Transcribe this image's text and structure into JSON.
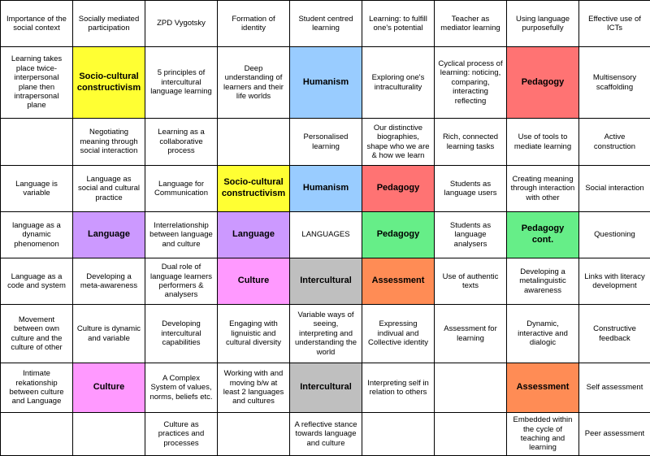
{
  "colors": {
    "yellow": "#ffff33",
    "blue": "#99ccff",
    "red": "#ff7373",
    "purple": "#cc99ff",
    "green": "#66ee88",
    "pink": "#ff99ff",
    "grey": "#bfbfbf",
    "orange": "#ff8c55",
    "white": "#ffffff"
  },
  "rows": [
    [
      {
        "text": "Importance of the social context"
      },
      {
        "text": "Socially mediated participation"
      },
      {
        "text": "ZPD Vygotsky"
      },
      {
        "text": "Formation of identity"
      },
      {
        "text": "Student centred learning"
      },
      {
        "text": "Learning: to fulfill one's potential"
      },
      {
        "text": "Teacher as mediator learning"
      },
      {
        "text": "Using language purposefully"
      },
      {
        "text": "Effective use of ICTs"
      }
    ],
    [
      {
        "text": "Learning takes place twice- interpersonal plane then intrapersonal plane"
      },
      {
        "text": "Socio-cultural constructivism",
        "color": "yellow",
        "bold": true
      },
      {
        "text": "5 principles of intercultural language learning"
      },
      {
        "text": "Deep understanding of learners and their life worlds"
      },
      {
        "text": "Humanism",
        "color": "blue",
        "bold": true
      },
      {
        "text": "Exploring one's intraculturality"
      },
      {
        "text": "Cyclical process of learning: noticing, comparing, interacting reflecting"
      },
      {
        "text": "Pedagogy",
        "color": "red",
        "bold": true
      },
      {
        "text": "Multisensory scaffolding"
      }
    ],
    [
      {
        "text": ""
      },
      {
        "text": "Negotiating meaning through social interaction"
      },
      {
        "text": "Learning as a collaborative process"
      },
      {
        "text": ""
      },
      {
        "text": "Personalised learning"
      },
      {
        "text": "Our distinctive biographies, shape who we are & how we learn"
      },
      {
        "text": "Rich, connected learning tasks"
      },
      {
        "text": "Use of tools to mediate learning"
      },
      {
        "text": "Active construction"
      }
    ],
    [
      {
        "text": "Language is variable"
      },
      {
        "text": "Language as social and cultural practice"
      },
      {
        "text": "Language for Communication"
      },
      {
        "text": "Socio-cultural constructivism",
        "color": "yellow",
        "bold": true
      },
      {
        "text": "Humanism",
        "color": "blue",
        "bold": true
      },
      {
        "text": "Pedagogy",
        "color": "red",
        "bold": true
      },
      {
        "text": "Students as language users"
      },
      {
        "text": "Creating meaning through interaction with other"
      },
      {
        "text": "Social interaction"
      }
    ],
    [
      {
        "text": "language as a dynamic phenomenon"
      },
      {
        "text": "Language",
        "color": "purple",
        "bold": true
      },
      {
        "text": "Interrelationship between language and culture"
      },
      {
        "text": "Language",
        "color": "purple",
        "bold": true
      },
      {
        "text": "LANGUAGES"
      },
      {
        "text": "Pedagogy",
        "color": "green",
        "bold": true
      },
      {
        "text": "Students as language analysers"
      },
      {
        "text": "Pedagogy cont.",
        "color": "green",
        "bold": true
      },
      {
        "text": "Questioning"
      }
    ],
    [
      {
        "text": "Language as a code and system"
      },
      {
        "text": "Developing a meta-awareness"
      },
      {
        "text": "Dual role of language learners performers & analysers"
      },
      {
        "text": "Culture",
        "color": "pink",
        "bold": true
      },
      {
        "text": "Intercultural",
        "color": "grey",
        "bold": true
      },
      {
        "text": "Assessment",
        "color": "orange",
        "bold": true
      },
      {
        "text": "Use of authentic texts"
      },
      {
        "text": "Developing a metalinguistic awareness"
      },
      {
        "text": "Links with literacy development"
      }
    ],
    [
      {
        "text": "Movement between own culture and the culture of other"
      },
      {
        "text": "Culture is dynamic and variable"
      },
      {
        "text": "Developing intercultural capabilities"
      },
      {
        "text": "Engaging with lignuistic and cultural diversity"
      },
      {
        "text": "Variable ways of seeing, interpreting and understanding the world"
      },
      {
        "text": "Expressing indivual and Collective identity"
      },
      {
        "text": "Assessment for learning"
      },
      {
        "text": "Dynamic, interactive and dialogic"
      },
      {
        "text": "Constructive feedback"
      }
    ],
    [
      {
        "text": "Intimate rekationship between culture and Language"
      },
      {
        "text": "Culture",
        "color": "pink",
        "bold": true
      },
      {
        "text": "A Complex System of values, norms, beliefs etc."
      },
      {
        "text": "Working with and moving b/w at least 2 languages and cultures"
      },
      {
        "text": "Intercultural",
        "color": "grey",
        "bold": true
      },
      {
        "text": "Interpreting self in relation to others"
      },
      {
        "text": ""
      },
      {
        "text": "Assessment",
        "color": "orange",
        "bold": true
      },
      {
        "text": "Self assessment"
      }
    ],
    [
      {
        "text": ""
      },
      {
        "text": ""
      },
      {
        "text": "Culture as practices and processes"
      },
      {
        "text": ""
      },
      {
        "text": "A reflective stance towards language and culture"
      },
      {
        "text": ""
      },
      {
        "text": ""
      },
      {
        "text": "Embedded within the cycle of teaching and learning"
      },
      {
        "text": "Peer assessment"
      }
    ]
  ]
}
